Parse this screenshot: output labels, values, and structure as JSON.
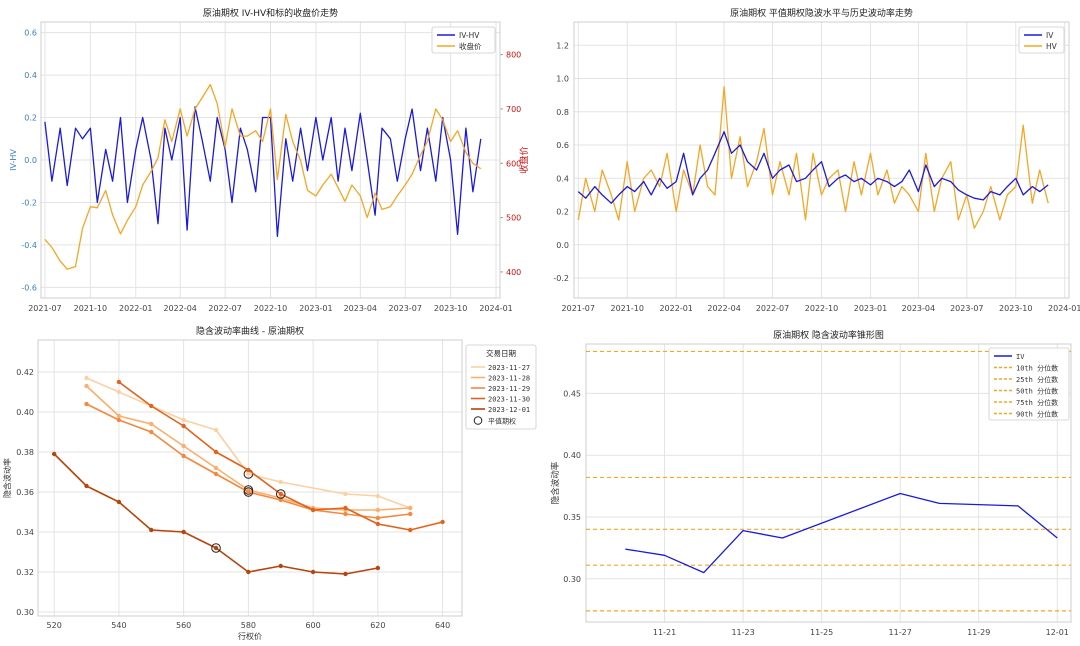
{
  "chart_data": [
    {
      "type": "line",
      "title": "原油期权 IV-HV和标的收盘价走势",
      "ylabel": "IV-HV",
      "y2label": "收盘价",
      "ylim": [
        -0.65,
        0.65
      ],
      "y2lim": [
        352,
        860
      ],
      "yticks": [
        "0.6",
        "0.4",
        "0.2",
        "0.0",
        "-0.2",
        "-0.4",
        "-0.6"
      ],
      "y2ticks": [
        "800",
        "700",
        "600",
        "500",
        "400"
      ],
      "xticks": [
        "2021-07",
        "2021-10",
        "2022-01",
        "2022-04",
        "2022-07",
        "2022-10",
        "2023-01",
        "2023-04",
        "2023-07",
        "2023-10",
        "2024-01"
      ],
      "legend_position": "top-right",
      "colors": {
        "IV-HV": "#1a1adf",
        "收盘价": "#f5a623"
      },
      "series": [
        {
          "name": "IV-HV",
          "x": [
            "2021-07-01",
            "2021-07-15",
            "2021-08-01",
            "2021-08-15",
            "2021-09-01",
            "2021-09-15",
            "2021-10-01",
            "2021-10-15",
            "2021-11-01",
            "2021-11-15",
            "2021-12-01",
            "2021-12-15",
            "2022-01-01",
            "2022-01-15",
            "2022-02-01",
            "2022-02-15",
            "2022-03-01",
            "2022-03-15",
            "2022-04-01",
            "2022-04-15",
            "2022-05-01",
            "2022-05-15",
            "2022-06-01",
            "2022-06-15",
            "2022-07-01",
            "2022-07-15",
            "2022-08-01",
            "2022-08-15",
            "2022-09-01",
            "2022-09-15",
            "2022-10-01",
            "2022-10-15",
            "2022-11-01",
            "2022-11-15",
            "2022-12-01",
            "2022-12-15",
            "2023-01-01",
            "2023-01-15",
            "2023-02-01",
            "2023-02-15",
            "2023-03-01",
            "2023-03-15",
            "2023-04-01",
            "2023-04-15",
            "2023-05-01",
            "2023-05-15",
            "2023-06-01",
            "2023-06-15",
            "2023-07-01",
            "2023-07-15",
            "2023-08-01",
            "2023-08-15",
            "2023-09-01",
            "2023-09-15",
            "2023-10-01",
            "2023-10-15",
            "2023-11-01",
            "2023-11-15",
            "2023-12-01"
          ],
          "values": [
            0.18,
            -0.1,
            0.15,
            -0.12,
            0.15,
            0.1,
            0.15,
            -0.2,
            0.05,
            -0.1,
            0.2,
            -0.2,
            0.05,
            0.2,
            0.0,
            -0.3,
            0.15,
            0.0,
            0.2,
            -0.33,
            0.25,
            0.1,
            -0.1,
            0.2,
            0.05,
            -0.2,
            0.15,
            0.05,
            -0.15,
            0.2,
            0.2,
            -0.36,
            0.1,
            -0.1,
            0.15,
            -0.05,
            0.2,
            0.0,
            0.2,
            -0.1,
            0.15,
            -0.05,
            0.22,
            0.0,
            -0.26,
            0.15,
            0.1,
            -0.1,
            0.1,
            0.24,
            -0.05,
            0.15,
            -0.1,
            0.2,
            0.0,
            -0.35,
            0.15,
            -0.15,
            0.1
          ]
        },
        {
          "name": "收盘价",
          "x": [
            "2021-07-01",
            "2021-07-15",
            "2021-08-01",
            "2021-08-15",
            "2021-09-01",
            "2021-09-15",
            "2021-10-01",
            "2021-10-15",
            "2021-11-01",
            "2021-11-15",
            "2021-12-01",
            "2021-12-15",
            "2022-01-01",
            "2022-01-15",
            "2022-02-01",
            "2022-02-15",
            "2022-03-01",
            "2022-03-15",
            "2022-04-01",
            "2022-04-15",
            "2022-05-01",
            "2022-05-15",
            "2022-06-01",
            "2022-06-15",
            "2022-07-01",
            "2022-07-15",
            "2022-08-01",
            "2022-08-15",
            "2022-09-01",
            "2022-09-15",
            "2022-10-01",
            "2022-10-15",
            "2022-11-01",
            "2022-11-15",
            "2022-12-01",
            "2022-12-15",
            "2023-01-01",
            "2023-01-15",
            "2023-02-01",
            "2023-02-15",
            "2023-03-01",
            "2023-03-15",
            "2023-04-01",
            "2023-04-15",
            "2023-05-01",
            "2023-05-15",
            "2023-06-01",
            "2023-06-15",
            "2023-07-01",
            "2023-07-15",
            "2023-08-01",
            "2023-08-15",
            "2023-09-01",
            "2023-09-15",
            "2023-10-01",
            "2023-10-15",
            "2023-11-01",
            "2023-11-15",
            "2023-12-01"
          ],
          "values": [
            460,
            445,
            420,
            405,
            410,
            480,
            520,
            518,
            550,
            505,
            470,
            495,
            520,
            560,
            585,
            610,
            680,
            640,
            700,
            650,
            700,
            720,
            745,
            710,
            630,
            700,
            650,
            650,
            660,
            640,
            700,
            570,
            690,
            640,
            605,
            550,
            540,
            560,
            580,
            555,
            530,
            560,
            540,
            500,
            545,
            515,
            520,
            540,
            560,
            580,
            615,
            640,
            700,
            680,
            640,
            660,
            620,
            600,
            590
          ]
        }
      ]
    },
    {
      "type": "line",
      "title": "原油期权 平值期权隐波水平与历史波动率走势",
      "ylim": [
        -0.32,
        1.34
      ],
      "yticks": [
        "1.2",
        "1.0",
        "0.8",
        "0.6",
        "0.4",
        "0.2",
        "0.0",
        "-0.2"
      ],
      "xticks": [
        "2021-07",
        "2021-10",
        "2022-01",
        "2022-04",
        "2022-07",
        "2022-10",
        "2023-01",
        "2023-04",
        "2023-07",
        "2023-10",
        "2024-01"
      ],
      "legend_position": "top-right",
      "colors": {
        "IV": "#1a1adf",
        "HV": "#f5a623"
      },
      "series": [
        {
          "name": "IV",
          "x": [
            "2021-07-01",
            "2021-07-15",
            "2021-08-01",
            "2021-08-15",
            "2021-09-01",
            "2021-09-15",
            "2021-10-01",
            "2021-10-15",
            "2021-11-01",
            "2021-11-15",
            "2021-12-01",
            "2021-12-15",
            "2022-01-01",
            "2022-01-15",
            "2022-02-01",
            "2022-02-15",
            "2022-03-01",
            "2022-03-15",
            "2022-04-01",
            "2022-04-15",
            "2022-05-01",
            "2022-05-15",
            "2022-06-01",
            "2022-06-15",
            "2022-07-01",
            "2022-07-15",
            "2022-08-01",
            "2022-08-15",
            "2022-09-01",
            "2022-09-15",
            "2022-10-01",
            "2022-10-15",
            "2022-11-01",
            "2022-11-15",
            "2022-12-01",
            "2022-12-15",
            "2023-01-01",
            "2023-01-15",
            "2023-02-01",
            "2023-02-15",
            "2023-03-01",
            "2023-03-15",
            "2023-04-01",
            "2023-04-15",
            "2023-05-01",
            "2023-05-15",
            "2023-06-01",
            "2023-06-15",
            "2023-07-01",
            "2023-07-15",
            "2023-08-01",
            "2023-08-15",
            "2023-09-01",
            "2023-09-15",
            "2023-10-01",
            "2023-10-15",
            "2023-11-01",
            "2023-11-15",
            "2023-12-01"
          ],
          "values": [
            0.32,
            0.28,
            0.35,
            0.3,
            0.25,
            0.3,
            0.35,
            0.32,
            0.38,
            0.3,
            0.4,
            0.34,
            0.38,
            0.55,
            0.3,
            0.4,
            0.45,
            0.55,
            0.68,
            0.55,
            0.6,
            0.5,
            0.45,
            0.55,
            0.4,
            0.45,
            0.48,
            0.38,
            0.4,
            0.45,
            0.5,
            0.35,
            0.4,
            0.42,
            0.38,
            0.4,
            0.36,
            0.4,
            0.38,
            0.35,
            0.38,
            0.45,
            0.32,
            0.48,
            0.35,
            0.4,
            0.38,
            0.33,
            0.3,
            0.28,
            0.27,
            0.32,
            0.3,
            0.35,
            0.4,
            0.3,
            0.35,
            0.32,
            0.36
          ]
        },
        {
          "name": "HV",
          "x": [
            "2021-07-01",
            "2021-07-15",
            "2021-08-01",
            "2021-08-15",
            "2021-09-01",
            "2021-09-15",
            "2021-10-01",
            "2021-10-15",
            "2021-11-01",
            "2021-11-15",
            "2021-12-01",
            "2021-12-15",
            "2022-01-01",
            "2022-01-15",
            "2022-02-01",
            "2022-02-15",
            "2022-03-01",
            "2022-03-15",
            "2022-04-01",
            "2022-04-15",
            "2022-05-01",
            "2022-05-15",
            "2022-06-01",
            "2022-06-15",
            "2022-07-01",
            "2022-07-15",
            "2022-08-01",
            "2022-08-15",
            "2022-09-01",
            "2022-09-15",
            "2022-10-01",
            "2022-10-15",
            "2022-11-01",
            "2022-11-15",
            "2022-12-01",
            "2022-12-15",
            "2023-01-01",
            "2023-01-15",
            "2023-02-01",
            "2023-02-15",
            "2023-03-01",
            "2023-03-15",
            "2023-04-01",
            "2023-04-15",
            "2023-05-01",
            "2023-05-15",
            "2023-06-01",
            "2023-06-15",
            "2023-07-01",
            "2023-07-15",
            "2023-08-01",
            "2023-08-15",
            "2023-09-01",
            "2023-09-15",
            "2023-10-01",
            "2023-10-15",
            "2023-11-01",
            "2023-11-15",
            "2023-12-01"
          ],
          "values": [
            0.15,
            0.4,
            0.2,
            0.45,
            0.3,
            0.15,
            0.5,
            0.2,
            0.4,
            0.45,
            0.35,
            0.55,
            0.2,
            0.45,
            0.3,
            0.6,
            0.35,
            0.3,
            0.95,
            0.4,
            0.65,
            0.35,
            0.5,
            0.7,
            0.3,
            0.5,
            0.3,
            0.55,
            0.15,
            0.55,
            0.3,
            0.4,
            0.45,
            0.2,
            0.5,
            0.3,
            0.55,
            0.3,
            0.45,
            0.25,
            0.35,
            0.3,
            0.2,
            0.55,
            0.2,
            0.4,
            0.5,
            0.15,
            0.3,
            0.1,
            0.2,
            0.35,
            0.15,
            0.3,
            0.35,
            0.72,
            0.25,
            0.45,
            0.25
          ]
        }
      ]
    },
    {
      "type": "line",
      "title": "隐含波动率曲线 - 原油期权",
      "xlabel": "行权价",
      "ylabel": "隐含波动率",
      "xlim": [
        515,
        646
      ],
      "ylim": [
        0.298,
        0.436
      ],
      "xticks": [
        "520",
        "540",
        "560",
        "580",
        "600",
        "620",
        "640"
      ],
      "yticks": [
        "0.42",
        "0.40",
        "0.38",
        "0.36",
        "0.34",
        "0.32",
        "0.30"
      ],
      "legend_title": "交易日期",
      "legend_position": "top-right",
      "atm_label": "平值期权",
      "series": [
        {
          "name": "2023-11-27",
          "color": "#fdd0a2",
          "x": [
            530,
            540,
            560,
            570,
            580,
            590,
            610,
            620,
            630
          ],
          "values": [
            0.417,
            0.41,
            0.396,
            0.391,
            0.369,
            0.365,
            0.359,
            0.358,
            0.352
          ],
          "atm": 580
        },
        {
          "name": "2023-11-28",
          "color": "#fdae6b",
          "x": [
            530,
            540,
            550,
            560,
            570,
            580,
            590,
            600,
            610,
            620,
            630
          ],
          "values": [
            0.413,
            0.398,
            0.394,
            0.383,
            0.372,
            0.361,
            0.357,
            0.352,
            0.351,
            0.351,
            0.352
          ],
          "atm": 580
        },
        {
          "name": "2023-11-29",
          "color": "#f4883e",
          "x": [
            530,
            540,
            550,
            560,
            570,
            580,
            590,
            600,
            610,
            620,
            630
          ],
          "values": [
            0.404,
            0.396,
            0.39,
            0.378,
            0.369,
            0.36,
            0.356,
            0.351,
            0.349,
            0.347,
            0.349
          ],
          "atm": 580
        },
        {
          "name": "2023-11-30",
          "color": "#e0631c",
          "x": [
            540,
            550,
            560,
            570,
            580,
            590,
            600,
            610,
            620,
            630,
            640
          ],
          "values": [
            0.415,
            0.403,
            0.393,
            0.38,
            0.371,
            0.359,
            0.351,
            0.352,
            0.344,
            0.341,
            0.345
          ],
          "atm": 590
        },
        {
          "name": "2023-12-01",
          "color": "#b4450c",
          "x": [
            520,
            530,
            540,
            550,
            560,
            570,
            580,
            590,
            600,
            610,
            620
          ],
          "values": [
            0.379,
            0.363,
            0.355,
            0.341,
            0.34,
            0.332,
            0.32,
            0.323,
            0.32,
            0.319,
            0.322
          ],
          "atm": 570
        }
      ]
    },
    {
      "type": "line",
      "title": "原油期权 隐含波动率锥形图",
      "ylabel": "隐含波动率",
      "ylim": [
        0.265,
        0.49
      ],
      "yticks": [
        "0.45",
        "0.40",
        "0.35",
        "0.30"
      ],
      "xticks": [
        "11-21",
        "11-23",
        "11-25",
        "11-27",
        "11-29",
        "12-01"
      ],
      "legend_position": "top-right",
      "series": [
        {
          "name": "IV",
          "color": "#1a1adf",
          "x": [
            "2023-11-20",
            "2023-11-21",
            "2023-11-22",
            "2023-11-23",
            "2023-11-24",
            "2023-11-27",
            "2023-11-28",
            "2023-11-29",
            "2023-11-30",
            "2023-12-01"
          ],
          "values": [
            0.324,
            0.319,
            0.305,
            0.339,
            0.333,
            0.369,
            0.361,
            0.36,
            0.359,
            0.333
          ]
        }
      ],
      "quantiles": [
        {
          "name": "10th 分位数",
          "value": 0.274
        },
        {
          "name": "25th 分位数",
          "value": 0.311
        },
        {
          "name": "50th 分位数",
          "value": 0.34
        },
        {
          "name": "75th 分位数",
          "value": 0.382
        },
        {
          "name": "90th 分位数",
          "value": 0.484
        }
      ],
      "quantile_color": "#f5a623"
    }
  ]
}
